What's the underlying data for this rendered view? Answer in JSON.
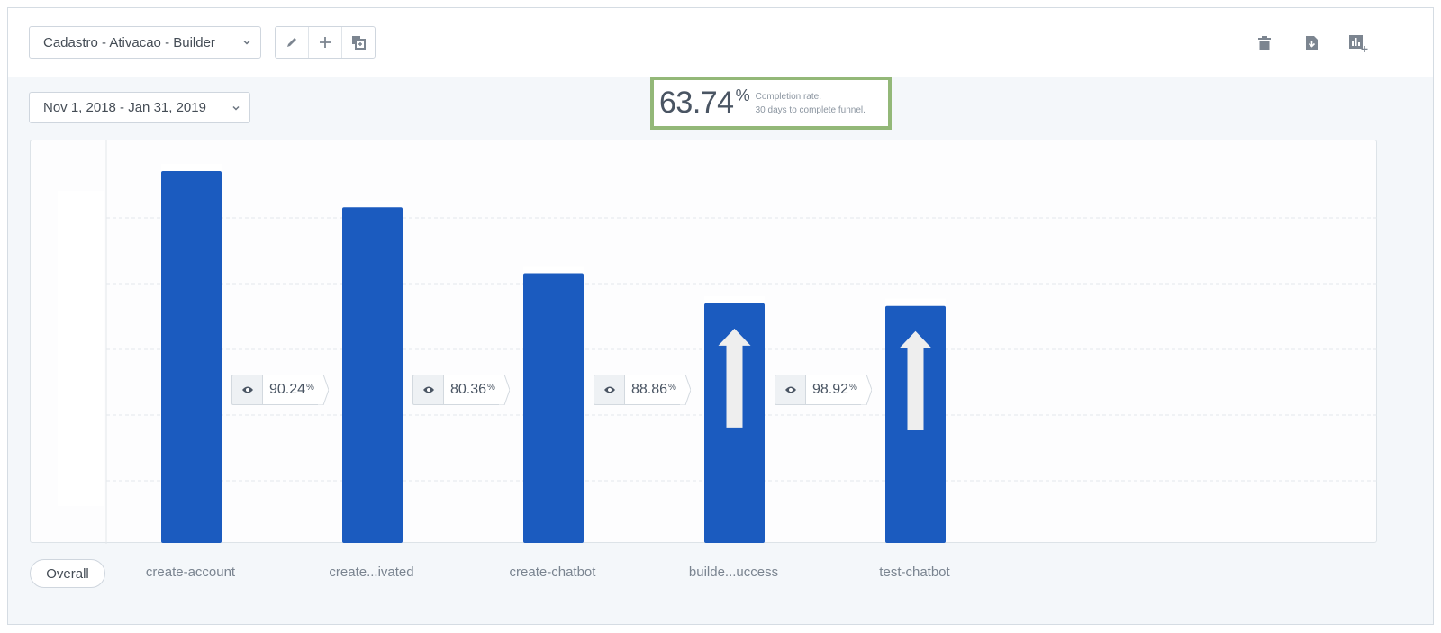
{
  "toolbar": {
    "report_name": "Cadastro - Ativacao - Builder",
    "edit_icon": "pencil-icon",
    "add_icon": "plus-icon",
    "copy_icon": "duplicate-icon",
    "delete_icon": "trash-icon",
    "download_icon": "download-icon",
    "add_to_board_icon": "add-chart-icon"
  },
  "date_range": "Nov 1, 2018 - Jan 31, 2019",
  "completion": {
    "rate": "63.74",
    "unit": "%",
    "label": "Completion rate.",
    "window": "30 days to complete funnel."
  },
  "overall_button": "Overall",
  "chart_data": {
    "type": "bar",
    "categories": [
      "create-account",
      "create...ivated",
      "create-chatbot",
      "builde...uccess",
      "test-chatbot"
    ],
    "values": [
      100,
      90.24,
      72.51,
      64.44,
      63.74
    ],
    "ylim": [
      0,
      100
    ],
    "grid": true,
    "bar_color": "#1b5bbf",
    "arrow_markers": [
      false,
      false,
      false,
      true,
      true
    ],
    "conversions": [
      "90.24",
      "80.36",
      "88.86",
      "98.92"
    ],
    "conversion_unit": "%"
  },
  "colors": {
    "bar": "#1b5bbf",
    "highlight_border": "#93b878",
    "background": "#f4f7fa"
  }
}
